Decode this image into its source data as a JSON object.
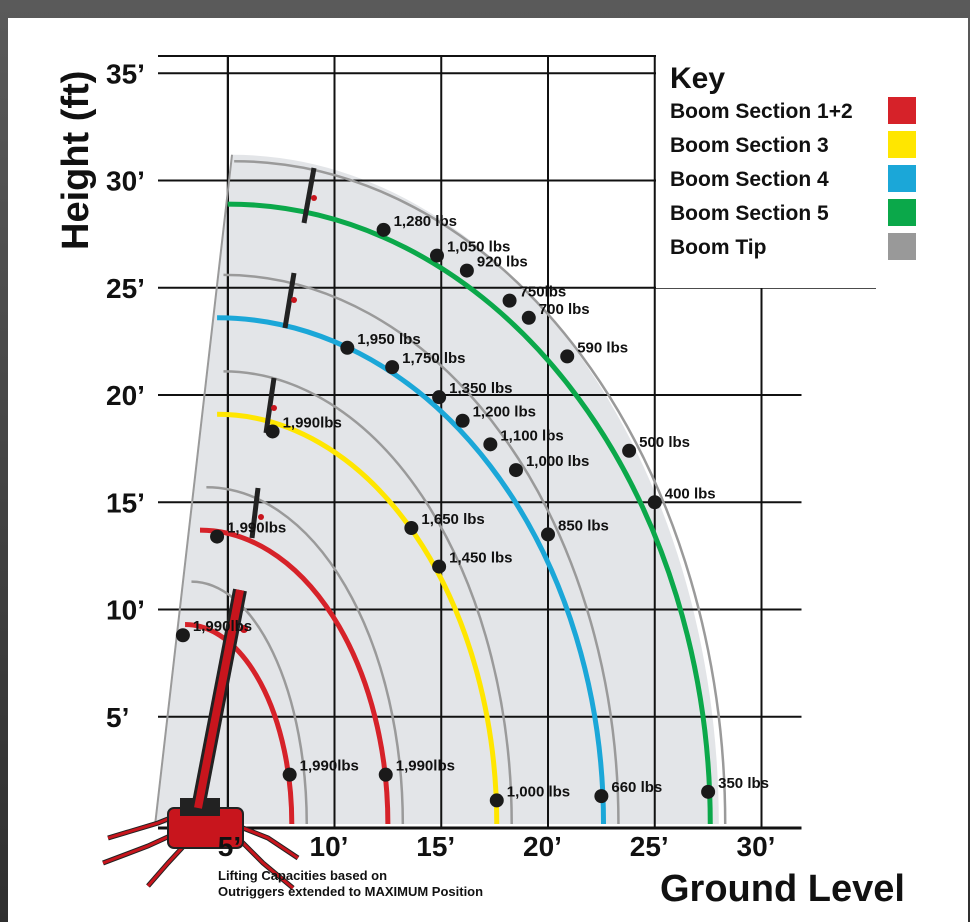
{
  "chart_data": {
    "type": "scatter",
    "ylabel": "Height (ft)",
    "xlabel": "Ground Level",
    "note": [
      "Lifting Capacities based on",
      "Outriggers extended to MAXIMUM Position"
    ],
    "x_ticks": [
      "5’",
      "10’",
      "15’",
      "20’",
      "25’",
      "30’"
    ],
    "x_tick_values": [
      5,
      10,
      15,
      20,
      25,
      30
    ],
    "y_ticks": [
      "5’",
      "10’",
      "15’",
      "20’",
      "25’",
      "30’",
      "35’"
    ],
    "y_tick_values": [
      5,
      10,
      15,
      20,
      25,
      30,
      35
    ],
    "xlim": [
      0,
      30
    ],
    "ylim": [
      0,
      35
    ],
    "grid": true,
    "key": {
      "title": "Key",
      "items": [
        {
          "label": "Boom Section 1+2",
          "color": "#d62229"
        },
        {
          "label": "Boom Section 3",
          "color": "#ffe600"
        },
        {
          "label": "Boom Section 4",
          "color": "#1ba7d8"
        },
        {
          "label": "Boom Section 5",
          "color": "#0ba84a"
        },
        {
          "label": "Boom Tip",
          "color": "#999999"
        }
      ]
    },
    "arcs": [
      {
        "color": "#d62229",
        "x": [
          3.0,
          8.0
        ],
        "y": [
          9.3,
          0
        ]
      },
      {
        "color": "#d62229",
        "x": [
          3.7,
          12.5
        ],
        "y": [
          13.7,
          0
        ]
      },
      {
        "color": "#ffe600",
        "x": [
          4.5,
          17.6
        ],
        "y": [
          19.1,
          0
        ]
      },
      {
        "color": "#1ba7d8",
        "x": [
          4.5,
          22.6
        ],
        "y": [
          23.6,
          0
        ]
      },
      {
        "color": "#0ba84a",
        "x": [
          5.0,
          27.6
        ],
        "y": [
          28.9,
          0
        ]
      }
    ],
    "points": [
      {
        "x": 2.9,
        "y": 8.8,
        "label": "1,990lbs"
      },
      {
        "x": 7.9,
        "y": 2.3,
        "label": "1,990lbs"
      },
      {
        "x": 12.4,
        "y": 2.3,
        "label": "1,990lbs"
      },
      {
        "x": 4.5,
        "y": 13.4,
        "label": "1,990lbs"
      },
      {
        "x": 7.1,
        "y": 18.3,
        "label": "1,990lbs"
      },
      {
        "x": 13.6,
        "y": 13.8,
        "label": "1,650 lbs"
      },
      {
        "x": 14.9,
        "y": 12.0,
        "label": "1,450 lbs"
      },
      {
        "x": 17.6,
        "y": 1.1,
        "label": "1,000 lbs"
      },
      {
        "x": 10.6,
        "y": 22.2,
        "label": "1,950 lbs"
      },
      {
        "x": 12.7,
        "y": 21.3,
        "label": "1,750 lbs"
      },
      {
        "x": 14.9,
        "y": 19.9,
        "label": "1,350 lbs"
      },
      {
        "x": 16.0,
        "y": 18.8,
        "label": "1,200 lbs"
      },
      {
        "x": 17.3,
        "y": 17.7,
        "label": "1,100 lbs"
      },
      {
        "x": 18.5,
        "y": 16.5,
        "label": "1,000 lbs"
      },
      {
        "x": 20.0,
        "y": 13.5,
        "label": "850 lbs"
      },
      {
        "x": 22.5,
        "y": 1.3,
        "label": "660 lbs"
      },
      {
        "x": 12.3,
        "y": 27.7,
        "label": "1,280 lbs"
      },
      {
        "x": 14.8,
        "y": 26.5,
        "label": "1,050 lbs"
      },
      {
        "x": 16.2,
        "y": 25.8,
        "label": "920 lbs"
      },
      {
        "x": 18.2,
        "y": 24.4,
        "label": "750lbs"
      },
      {
        "x": 19.1,
        "y": 23.6,
        "label": "700 lbs"
      },
      {
        "x": 20.9,
        "y": 21.8,
        "label": "590 lbs"
      },
      {
        "x": 23.8,
        "y": 17.4,
        "label": "500 lbs"
      },
      {
        "x": 25.0,
        "y": 15.0,
        "label": "400 lbs"
      },
      {
        "x": 27.5,
        "y": 1.5,
        "label": "350 lbs"
      }
    ]
  }
}
